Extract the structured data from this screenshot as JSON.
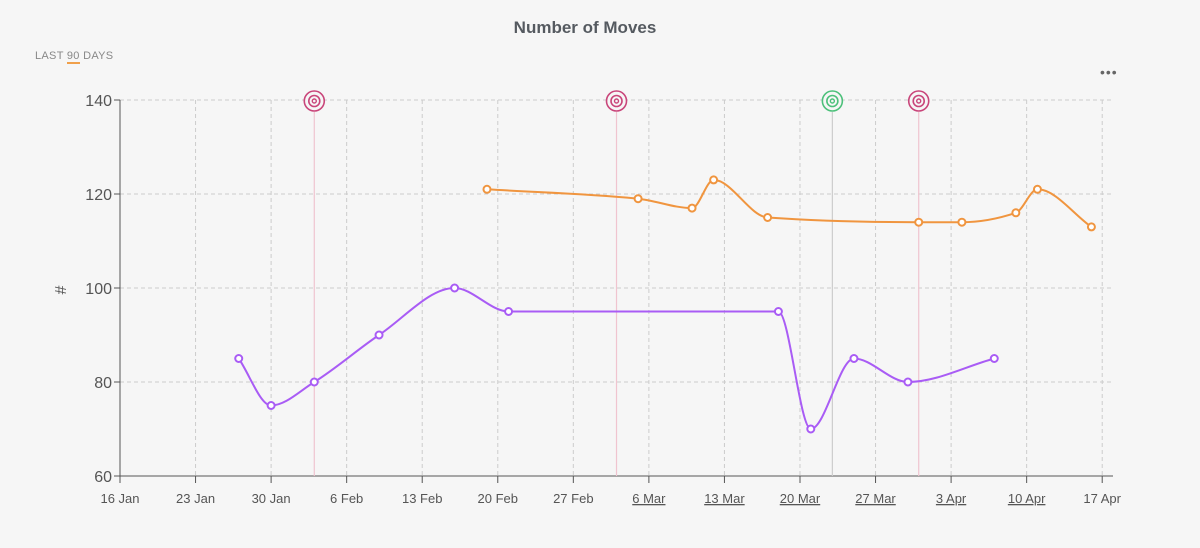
{
  "chart_data": {
    "type": "line",
    "title": "Number of Moves",
    "range_label_prefix": "LAST",
    "range_label_value": "90",
    "range_label_suffix": "DAYS",
    "ylabel": "#",
    "ylim": [
      60,
      140
    ],
    "yticks": [
      60,
      80,
      100,
      120,
      140
    ],
    "xlim": [
      "2024-01-16",
      "2024-04-17"
    ],
    "xticks": [
      {
        "date": "2024-01-16",
        "label": "16 Jan",
        "underlined": false
      },
      {
        "date": "2024-01-23",
        "label": "23 Jan",
        "underlined": false
      },
      {
        "date": "2024-01-30",
        "label": "30 Jan",
        "underlined": false
      },
      {
        "date": "2024-02-06",
        "label": "6 Feb",
        "underlined": false
      },
      {
        "date": "2024-02-13",
        "label": "13 Feb",
        "underlined": false
      },
      {
        "date": "2024-02-20",
        "label": "20 Feb",
        "underlined": false
      },
      {
        "date": "2024-02-27",
        "label": "27 Feb",
        "underlined": false
      },
      {
        "date": "2024-03-05",
        "label": "6 Mar",
        "underlined": true
      },
      {
        "date": "2024-03-12",
        "label": "13 Mar",
        "underlined": true
      },
      {
        "date": "2024-03-19",
        "label": "20 Mar",
        "underlined": true
      },
      {
        "date": "2024-03-26",
        "label": "27 Mar",
        "underlined": true
      },
      {
        "date": "2024-04-02",
        "label": "3 Apr",
        "underlined": true
      },
      {
        "date": "2024-04-09",
        "label": "10 Apr",
        "underlined": true
      },
      {
        "date": "2024-04-16",
        "label": "17 Apr",
        "underlined": false
      }
    ],
    "grid": true,
    "series": [
      {
        "color": "#f0953f",
        "points": [
          [
            "2024-02-19",
            121
          ],
          [
            "2024-03-04",
            119
          ],
          [
            "2024-03-09",
            117
          ],
          [
            "2024-03-11",
            123
          ],
          [
            "2024-03-16",
            115
          ],
          [
            "2024-03-30",
            114
          ],
          [
            "2024-04-03",
            114
          ],
          [
            "2024-04-08",
            116
          ],
          [
            "2024-04-10",
            121
          ],
          [
            "2024-04-15",
            113
          ]
        ]
      },
      {
        "color": "#a95cf5",
        "points": [
          [
            "2024-01-27",
            85
          ],
          [
            "2024-01-30",
            75
          ],
          [
            "2024-02-03",
            80
          ],
          [
            "2024-02-09",
            90
          ],
          [
            "2024-02-16",
            100
          ],
          [
            "2024-02-21",
            95
          ],
          [
            "2024-03-17",
            95
          ],
          [
            "2024-03-20",
            70
          ],
          [
            "2024-03-24",
            85
          ],
          [
            "2024-03-29",
            80
          ],
          [
            "2024-04-06",
            85
          ]
        ]
      }
    ],
    "events": [
      {
        "date": "2024-02-03",
        "color": "#c9457a"
      },
      {
        "date": "2024-03-02",
        "color": "#c9457a"
      },
      {
        "date": "2024-03-22",
        "color": "#4cc07a"
      },
      {
        "date": "2024-03-30",
        "color": "#c9457a"
      }
    ]
  },
  "more_label": "•••"
}
